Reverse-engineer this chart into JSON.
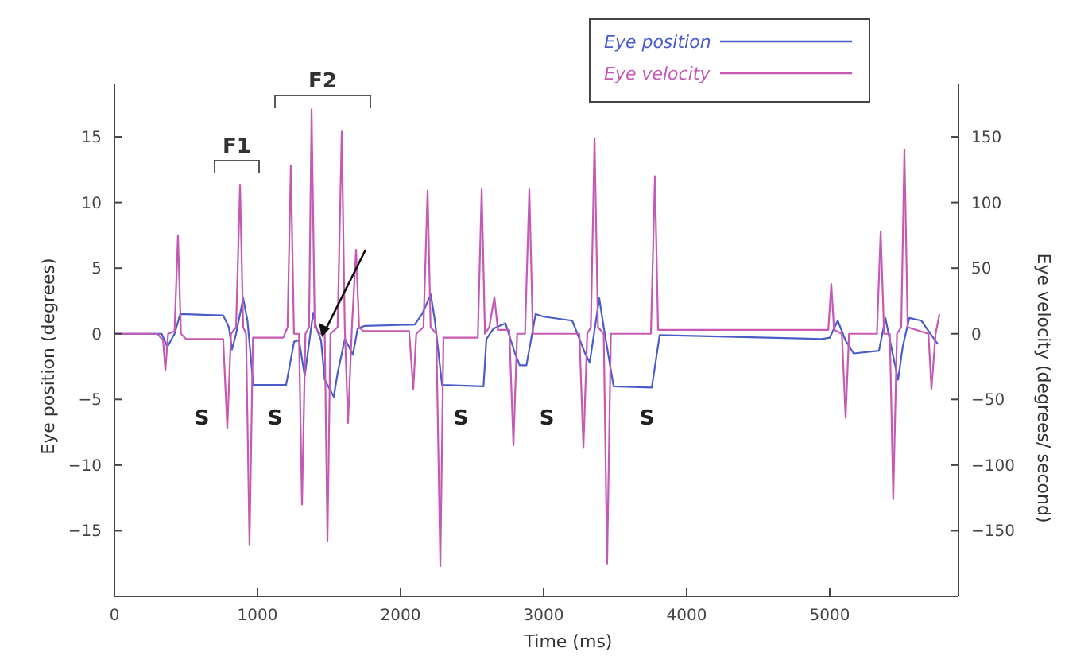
{
  "chart_data": {
    "type": "line",
    "xlabel": "Time (ms)",
    "ylabel": "Eye position (degrees)",
    "y2label": "Eye velocity (degrees/ second)",
    "xlim": [
      0,
      5900
    ],
    "xticks": [
      0,
      1000,
      2000,
      3000,
      4000,
      5000
    ],
    "ylim": [
      -20,
      19
    ],
    "yticks": [
      -15,
      -10,
      -5,
      0,
      5,
      10,
      15
    ],
    "y2lim": [
      -200,
      190
    ],
    "y2ticks": [
      -150,
      -100,
      -50,
      0,
      50,
      100,
      150
    ],
    "legend": "top right",
    "grid": false,
    "series": [
      {
        "name": "Eye position",
        "color": "#4a5cc8",
        "x": [
          0,
          330,
          370,
          420,
          460,
          760,
          800,
          822,
          850,
          900,
          930,
          970,
          1200,
          1256,
          1290,
          1330,
          1389,
          1410,
          1444,
          1470,
          1533,
          1560,
          1611,
          1640,
          1667,
          1700,
          1750,
          2100,
          2150,
          2211,
          2240,
          2290,
          2580,
          2600,
          2650,
          2733,
          2800,
          2833,
          2880,
          2944,
          3000,
          3200,
          3290,
          3322,
          3389,
          3420,
          3489,
          3756,
          3811,
          4944,
          5000,
          5056,
          5110,
          5167,
          5344,
          5389,
          5430,
          5478,
          5510,
          5556,
          5640,
          5678,
          5756
        ],
        "values": [
          0,
          0,
          -1,
          0,
          1.5,
          1.4,
          0.5,
          -1.2,
          0,
          2.7,
          1,
          -3.9,
          -3.9,
          -0.6,
          -0.5,
          -3.2,
          1.6,
          0.5,
          -0.5,
          -3.5,
          -4.8,
          -3,
          -0.4,
          -1,
          -1.6,
          0.4,
          0.6,
          0.7,
          1.5,
          3.0,
          1,
          -3.9,
          -4,
          -0.4,
          0.4,
          0.8,
          -1.5,
          -2.4,
          -2.4,
          1.5,
          1.3,
          1.0,
          -1.5,
          -2.2,
          2.7,
          0.5,
          -4.0,
          -4.1,
          -0.1,
          -0.4,
          -0.3,
          1.0,
          -0.5,
          -1.5,
          -1.3,
          1.2,
          -1,
          -3.5,
          -1,
          1.2,
          1.0,
          0.4,
          -0.8
        ]
      },
      {
        "name": "Eye velocity",
        "color": "#c659b4",
        "axis": "y2",
        "x": [
          0,
          300,
          340,
          356,
          375,
          420,
          444,
          465,
          500,
          760,
          789,
          815,
          850,
          878,
          900,
          920,
          944,
          968,
          1180,
          1210,
          1233,
          1255,
          1290,
          1311,
          1335,
          1360,
          1378,
          1400,
          1440,
          1470,
          1489,
          1510,
          1560,
          1589,
          1610,
          1633,
          1660,
          1689,
          1710,
          1740,
          2060,
          2089,
          2110,
          2160,
          2189,
          2210,
          2250,
          2278,
          2300,
          2540,
          2567,
          2590,
          2620,
          2656,
          2680,
          2760,
          2789,
          2815,
          2870,
          2900,
          2925,
          3250,
          3278,
          3305,
          3330,
          3356,
          3380,
          3420,
          3444,
          3470,
          3750,
          3778,
          3800,
          4990,
          5011,
          5030,
          5085,
          5111,
          5135,
          5330,
          5356,
          5380,
          5420,
          5444,
          5470,
          5500,
          5522,
          5545,
          5690,
          5711,
          5740,
          5767
        ],
        "values": [
          0,
          0,
          -5,
          -28,
          0,
          2,
          75,
          0,
          -4,
          -4,
          -72,
          0,
          5,
          113,
          5,
          0,
          -161,
          -3,
          -3,
          5,
          128,
          0,
          0,
          -130,
          0,
          5,
          171,
          5,
          0,
          0,
          -158,
          0,
          5,
          154,
          5,
          -68,
          5,
          64,
          5,
          2,
          2,
          -42,
          0,
          5,
          109,
          5,
          0,
          -177,
          -3,
          -3,
          110,
          0,
          5,
          28,
          3,
          3,
          -85,
          0,
          0,
          110,
          0,
          0,
          -87,
          0,
          5,
          149,
          5,
          0,
          -175,
          0,
          0,
          120,
          3,
          3,
          38,
          3,
          0,
          -64,
          0,
          0,
          78,
          0,
          0,
          -126,
          0,
          5,
          140,
          5,
          0,
          -42,
          0,
          15
        ]
      }
    ],
    "annotations": [
      "F1",
      "F2",
      "S",
      "S",
      "S",
      "S",
      "S"
    ]
  }
}
